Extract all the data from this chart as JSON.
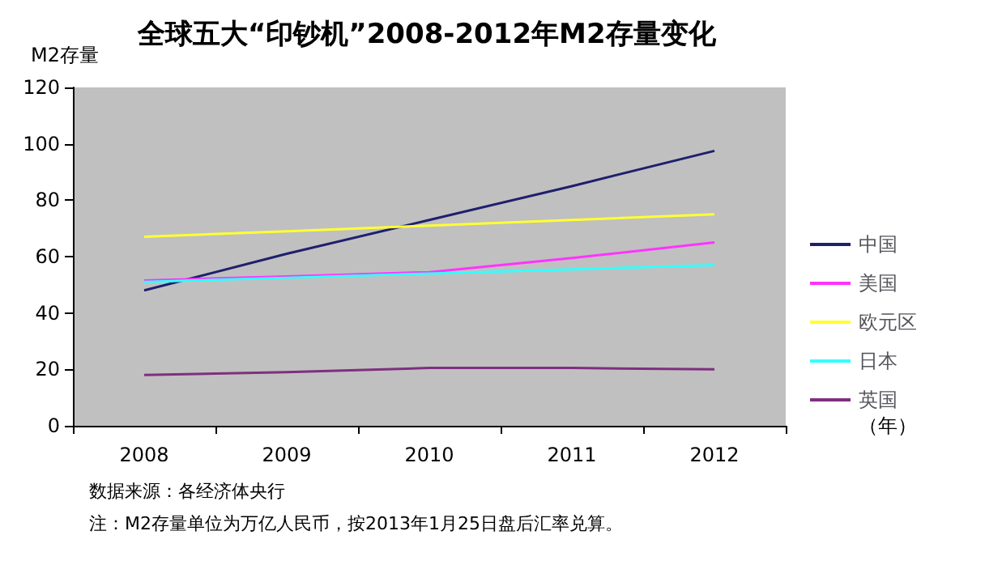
{
  "chart_data": {
    "type": "line",
    "title": "全球五大“印钞机”2008-2012年M2存量变化",
    "ylabel": "M2存量",
    "xlabel": "（年）",
    "categories": [
      "2008",
      "2009",
      "2010",
      "2011",
      "2012"
    ],
    "series": [
      {
        "name": "中国",
        "color": "#1f1f6e",
        "values": [
          48,
          61,
          73,
          85,
          97.5
        ]
      },
      {
        "name": "美国",
        "color": "#ff33ff",
        "values": [
          51.5,
          53,
          54.5,
          59.5,
          65
        ]
      },
      {
        "name": "欧元区",
        "color": "#ffff33",
        "values": [
          67,
          69,
          71,
          73,
          75
        ]
      },
      {
        "name": "日本",
        "color": "#33ffff",
        "values": [
          51,
          52.5,
          54,
          55.5,
          57
        ]
      },
      {
        "name": "英国",
        "color": "#7f2f7f",
        "values": [
          18,
          19,
          20.5,
          20.5,
          20
        ]
      }
    ],
    "ylim": [
      0,
      120
    ],
    "yticks": [
      0,
      20,
      40,
      60,
      80,
      100,
      120
    ],
    "grid": false,
    "legend": "right",
    "marker": "none",
    "annotations": [
      "数据来源：各经济体央行",
      "注：M2存量单位为万亿人民币，按2013年1月25日盘后汇率兑算。"
    ]
  }
}
